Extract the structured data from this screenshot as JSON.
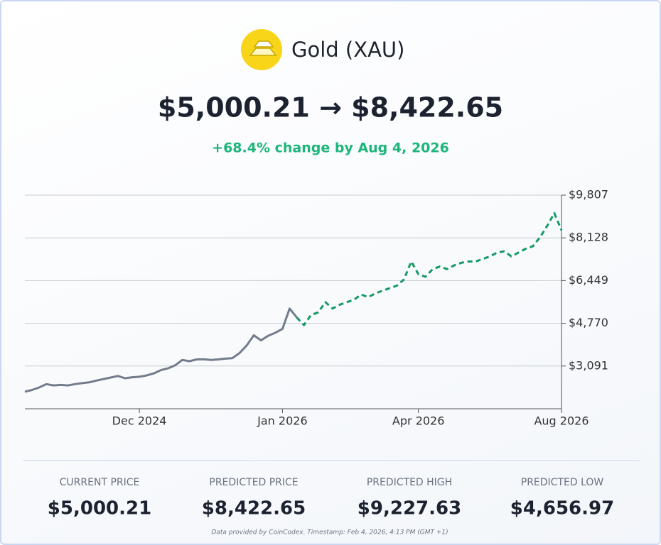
{
  "header": {
    "title": "Gold (XAU)",
    "price_change": "$5,000.21 → $8,422.65",
    "change_note": "+68.4% change by Aug 4, 2026"
  },
  "chart_data": {
    "type": "line",
    "categories": [
      null,
      null,
      null,
      null,
      null,
      null,
      null,
      null,
      null,
      null,
      null,
      null,
      null,
      null,
      null,
      null,
      "Dec 2024",
      null,
      null,
      null,
      null,
      null,
      null,
      null,
      null,
      null,
      null,
      null,
      null,
      null,
      null,
      null,
      null,
      null,
      null,
      null,
      "Jan 2026",
      null,
      null,
      null,
      null,
      null,
      null,
      null,
      null,
      null,
      null,
      null,
      null,
      null,
      null,
      null,
      null,
      null,
      null,
      "Apr 2026",
      null,
      null,
      null,
      null,
      null,
      null,
      null,
      null,
      null,
      null,
      null,
      null,
      null,
      null,
      null,
      null,
      null,
      null,
      null,
      "Aug 2026"
    ],
    "series": [
      {
        "color": "#737c8c",
        "dashed": false,
        "values": [
          2080,
          2150,
          2250,
          2380,
          2330,
          2350,
          2330,
          2380,
          2420,
          2450,
          2520,
          2580,
          2640,
          2700,
          2610,
          2650,
          2670,
          2720,
          2800,
          2930,
          3000,
          3120,
          3330,
          3280,
          3350,
          3360,
          3330,
          3350,
          3380,
          3400,
          3600,
          3900,
          4300,
          4100,
          4280,
          4400,
          4550,
          5350,
          5000.21,
          null,
          null,
          null,
          null,
          null,
          null,
          null,
          null,
          null,
          null,
          null,
          null,
          null,
          null,
          null,
          null,
          null,
          null,
          null,
          null,
          null,
          null,
          null,
          null,
          null,
          null,
          null,
          null,
          null,
          null,
          null,
          null,
          null,
          null,
          null,
          null,
          null
        ]
      },
      {
        "color": "#129a62",
        "dashed": true,
        "values": [
          null,
          null,
          null,
          null,
          null,
          null,
          null,
          null,
          null,
          null,
          null,
          null,
          null,
          null,
          null,
          null,
          null,
          null,
          null,
          null,
          null,
          null,
          null,
          null,
          null,
          null,
          null,
          null,
          null,
          null,
          null,
          null,
          null,
          null,
          null,
          null,
          null,
          null,
          5000.21,
          4700,
          5100,
          5200,
          5600,
          5350,
          5500,
          5600,
          5700,
          5900,
          5800,
          5950,
          6050,
          6150,
          6250,
          6500,
          7200,
          6700,
          6600,
          6900,
          7000,
          6900,
          7050,
          7150,
          7200,
          7200,
          7300,
          7400,
          7550,
          7600,
          7400,
          7550,
          7700,
          7800,
          8150,
          8600,
          9100,
          8422.65
        ]
      }
    ],
    "ylim": [
      1412,
      9807
    ],
    "yticks": [
      {
        "value": 3091,
        "label": "$3,091"
      },
      {
        "value": 4770,
        "label": "$4,770"
      },
      {
        "value": 6449,
        "label": "$6,449"
      },
      {
        "value": 8128,
        "label": "$8,128"
      },
      {
        "value": 9807,
        "label": "$9,807"
      }
    ],
    "grid": true
  },
  "stats": [
    {
      "label": "CURRENT PRICE",
      "value": "$5,000.21"
    },
    {
      "label": "PREDICTED PRICE",
      "value": "$8,422.65"
    },
    {
      "label": "PREDICTED HIGH",
      "value": "$9,227.63"
    },
    {
      "label": "PREDICTED LOW",
      "value": "$4,656.97"
    }
  ],
  "footer": "Data provided by CoinCodex. Timestamp: Feb 4, 2026, 4:13 PM (GMT +1)"
}
